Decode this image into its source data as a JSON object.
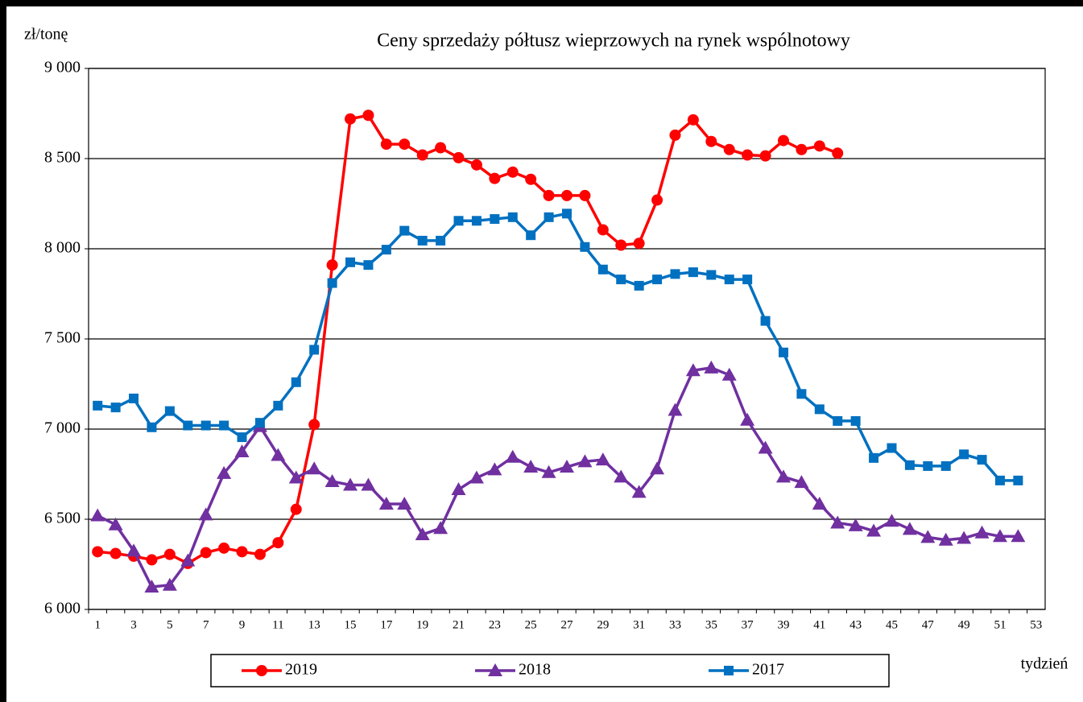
{
  "chart_data": {
    "type": "line",
    "title": "Ceny sprzedaży półtusz wieprzowych na rynek wspólnotowy",
    "y_label": "zł/tonę",
    "x_label": "tydzień",
    "categories": [
      1,
      null,
      3,
      null,
      5,
      null,
      7,
      null,
      9,
      null,
      11,
      null,
      13,
      null,
      15,
      null,
      17,
      null,
      19,
      null,
      21,
      null,
      23,
      null,
      25,
      null,
      27,
      null,
      29,
      null,
      31,
      null,
      33,
      null,
      35,
      null,
      37,
      null,
      39,
      null,
      41,
      null,
      43,
      null,
      45,
      null,
      47,
      null,
      49,
      null,
      51,
      null,
      53
    ],
    "ylim": [
      6000,
      9000
    ],
    "yticks": [
      {
        "value": 6000,
        "label": "6 000"
      },
      {
        "value": 6500,
        "label": "6 500"
      },
      {
        "value": 7000,
        "label": "7 000"
      },
      {
        "value": 7500,
        "label": "7 500"
      },
      {
        "value": 8000,
        "label": "8 000"
      },
      {
        "value": 8500,
        "label": "8 500"
      },
      {
        "value": 9000,
        "label": "9 000"
      }
    ],
    "grid": true,
    "legend": "bottom",
    "series": [
      {
        "name": "2019",
        "color": "#ff0000",
        "marker": "circle",
        "values": [
          6320,
          6310,
          6295,
          6275,
          6305,
          6255,
          6315,
          6340,
          6320,
          6305,
          6370,
          6555,
          7025,
          7910,
          8720,
          8740,
          8580,
          8580,
          8520,
          8560,
          8505,
          8465,
          8390,
          8425,
          8385,
          8295,
          8295,
          8295,
          8105,
          8020,
          8030,
          8270,
          8630,
          8715,
          8595,
          8550,
          8520,
          8515,
          8600,
          8550,
          8570,
          8530,
          null,
          null,
          null,
          null,
          null,
          null,
          null,
          null,
          null,
          null,
          null
        ]
      },
      {
        "name": "2018",
        "color": "#7030a0",
        "marker": "triangle",
        "values": [
          6520,
          6470,
          6325,
          6125,
          6135,
          6270,
          6525,
          6755,
          6875,
          7015,
          6855,
          6730,
          6780,
          6710,
          6690,
          6690,
          6585,
          6585,
          6415,
          6450,
          6665,
          6730,
          6775,
          6845,
          6790,
          6760,
          6790,
          6820,
          6830,
          6735,
          6650,
          6780,
          7105,
          7325,
          7340,
          7300,
          7050,
          6895,
          6735,
          6705,
          6585,
          6480,
          6465,
          6435,
          6490,
          6445,
          6400,
          6385,
          6395,
          6425,
          6405,
          6405,
          null
        ]
      },
      {
        "name": "2017",
        "color": "#0070c0",
        "marker": "square",
        "values": [
          7130,
          7120,
          7170,
          7010,
          7100,
          7020,
          7020,
          7020,
          6955,
          7035,
          7130,
          7260,
          7440,
          7810,
          7925,
          7910,
          7995,
          8100,
          8045,
          8045,
          8155,
          8155,
          8165,
          8175,
          8075,
          8175,
          8195,
          8010,
          7885,
          7830,
          7795,
          7830,
          7860,
          7870,
          7855,
          7830,
          7830,
          7600,
          7425,
          7195,
          7110,
          7045,
          7045,
          6840,
          6895,
          6800,
          6795,
          6795,
          6860,
          6830,
          6715,
          6715,
          null
        ]
      }
    ]
  }
}
